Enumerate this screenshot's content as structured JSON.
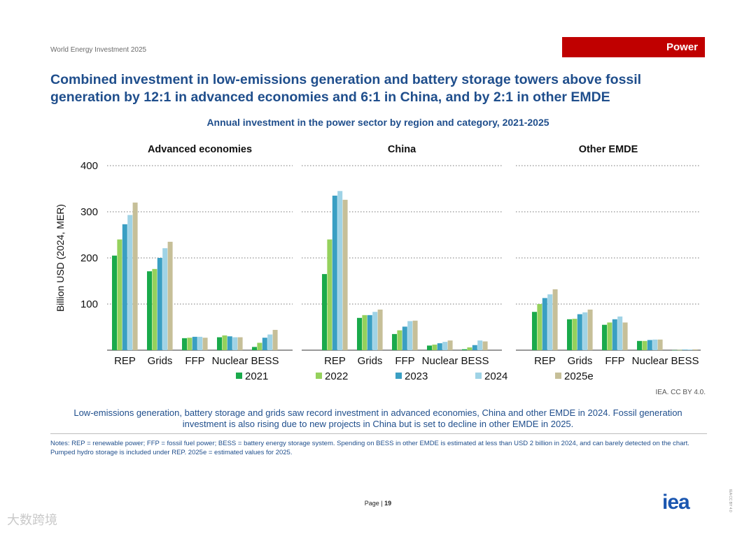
{
  "header": {
    "report_name": "World Energy Investment 2025",
    "section_badge": "Power",
    "title": "Combined investment in low-emissions generation and battery storage towers above fossil generation by 12:1 in advanced economies and 6:1 in China, and by 2:1 in other EMDE"
  },
  "chart_data": {
    "type": "bar",
    "title": "Annual investment in the power sector by region and category, 2021-2025",
    "ylabel": "Billion USD (2024, MER)",
    "ylim": [
      0,
      400
    ],
    "yticks": [
      100,
      200,
      300,
      400
    ],
    "grid": true,
    "legend_position": "bottom",
    "categories": [
      "REP",
      "Grids",
      "FFP",
      "Nuclear",
      "BESS"
    ],
    "series_names": [
      "2021",
      "2022",
      "2023",
      "2024",
      "2025e"
    ],
    "series_colors": [
      "#1aaa4b",
      "#95d15c",
      "#3a9fc3",
      "#9fd3e6",
      "#c6bf98"
    ],
    "panels": [
      {
        "name": "Advanced economies",
        "values": [
          [
            205,
            240,
            273,
            293,
            320
          ],
          [
            171,
            176,
            200,
            221,
            235
          ],
          [
            26,
            27,
            29,
            29,
            27
          ],
          [
            28,
            32,
            30,
            28,
            28
          ],
          [
            7,
            16,
            27,
            34,
            44
          ]
        ]
      },
      {
        "name": "China",
        "values": [
          [
            165,
            240,
            335,
            345,
            326
          ],
          [
            70,
            76,
            76,
            83,
            88
          ],
          [
            35,
            43,
            51,
            63,
            64
          ],
          [
            10,
            12,
            15,
            18,
            21
          ],
          [
            2,
            6,
            11,
            21,
            19
          ]
        ]
      },
      {
        "name": "Other EMDE",
        "values": [
          [
            83,
            100,
            113,
            121,
            132
          ],
          [
            67,
            68,
            78,
            82,
            88
          ],
          [
            55,
            60,
            67,
            73,
            60
          ],
          [
            20,
            20,
            22,
            23,
            23
          ],
          [
            0.3,
            0.5,
            1,
            1.5,
            1.8
          ]
        ]
      }
    ]
  },
  "credit": "IEA. CC BY 4.0.",
  "caption": "Low-emissions generation, battery storage and grids saw record investment in advanced economies, China and other EMDE in 2024. Fossil generation investment is also rising due to new projects in China but is set to decline in other EMDE in 2025.",
  "notes": "Notes: REP = renewable power; FFP = fossil fuel power; BESS = battery energy storage system. Spending on BESS in other EMDE is estimated at less than USD 2 billion in 2024, and can barely detected on the chart. Pumped hydro storage is included under REP. 2025e = estimated values for 2025.",
  "footer": {
    "page_label": "Page",
    "page_number": "19",
    "logo": "iea",
    "license": "IEA CC BY 4.0",
    "watermark": "大数跨境"
  }
}
